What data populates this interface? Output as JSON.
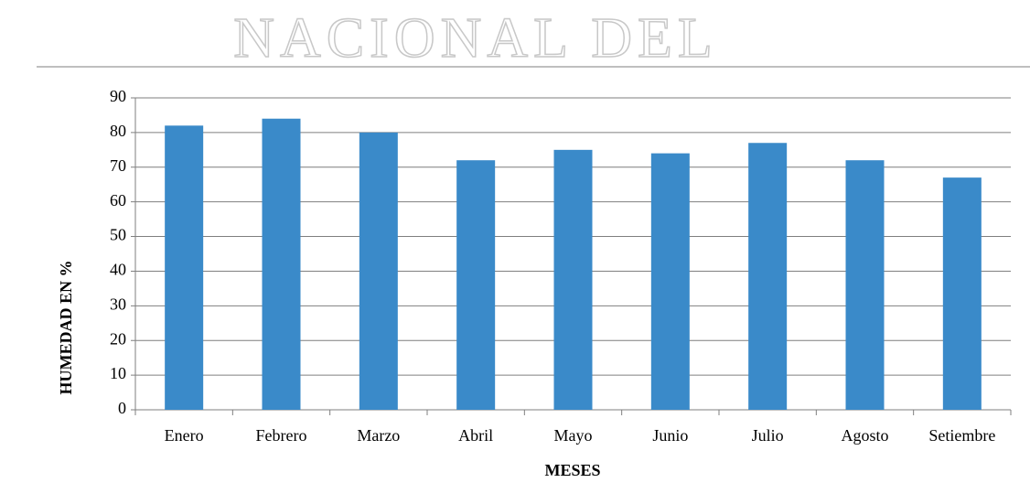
{
  "chart_data": {
    "type": "bar",
    "watermark": "NACIONAL DEL",
    "x_label": "MESES",
    "y_label": "HUMEDAD EN %",
    "categories": [
      "Enero",
      "Febrero",
      "Marzo",
      "Abril",
      "Mayo",
      "Junio",
      "Julio",
      "Agosto",
      "Setiembre"
    ],
    "values": [
      82,
      84,
      80,
      72,
      75,
      74,
      77,
      72,
      67
    ],
    "color": "#3a8ac9",
    "ylim": [
      0,
      90
    ],
    "yticks": [
      0,
      10,
      20,
      30,
      40,
      50,
      60,
      70,
      80,
      90
    ],
    "grid": true
  }
}
